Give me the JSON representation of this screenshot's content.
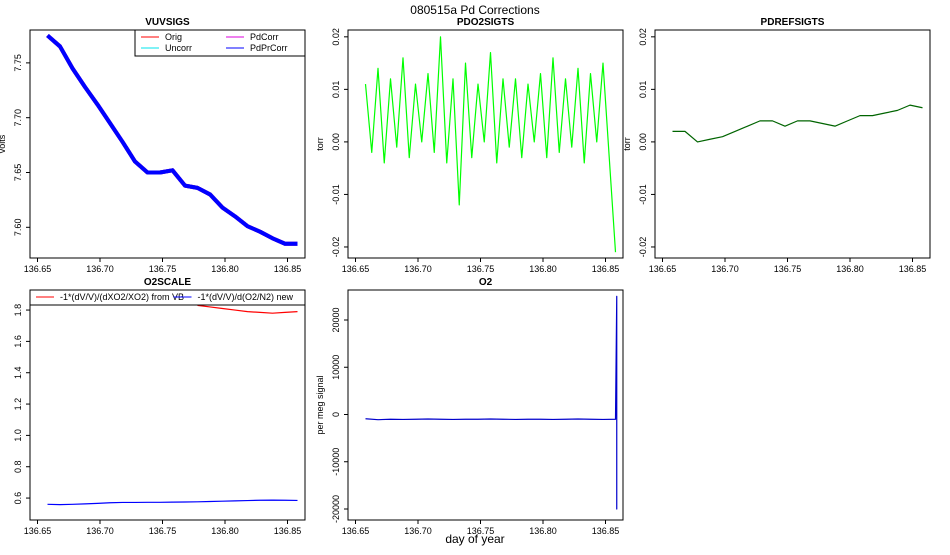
{
  "title": "080515a   Pd Corrections",
  "xlabel": "day of year",
  "chart_data": [
    {
      "type": "line",
      "title": "VUVSIGS",
      "ylabel": "volts",
      "xlim": [
        136.644,
        136.864
      ],
      "xticks": [
        136.65,
        {
          "value": 136.7,
          "label": "136.70"
        },
        136.75,
        {
          "value": 136.8,
          "label": "136.80"
        },
        136.85
      ],
      "ylim": [
        7.572,
        7.78
      ],
      "yticks": [
        {
          "value": 7.6,
          "label": "7.60"
        },
        7.65,
        {
          "value": 7.7,
          "label": "7.70"
        },
        7.75
      ],
      "legend": "upper right",
      "x": [
        136.658,
        136.668,
        136.678,
        136.688,
        136.698,
        136.708,
        136.718,
        136.728,
        136.738,
        136.748,
        136.758,
        136.768,
        136.778,
        136.788,
        136.798,
        136.808,
        136.818,
        136.828,
        136.838,
        136.848,
        136.858
      ],
      "series": [
        {
          "name": "Orig",
          "color": "#ff0000",
          "values": [
            7.775,
            7.765,
            7.745,
            7.728,
            7.712,
            7.695,
            7.678,
            7.66,
            7.65,
            7.65,
            7.652,
            7.638,
            7.636,
            7.63,
            7.618,
            7.61,
            7.601,
            7.596,
            7.59,
            7.585,
            7.585
          ]
        },
        {
          "name": "Uncorr",
          "color": "#00e5ee",
          "values": [
            7.775,
            7.765,
            7.745,
            7.728,
            7.712,
            7.695,
            7.678,
            7.66,
            7.65,
            7.65,
            7.652,
            7.638,
            7.636,
            7.63,
            7.618,
            7.61,
            7.601,
            7.596,
            7.59,
            7.585,
            7.585
          ]
        },
        {
          "name": "PdCorr",
          "color": "#dd00dd",
          "values": [
            7.775,
            7.765,
            7.745,
            7.728,
            7.712,
            7.695,
            7.678,
            7.66,
            7.65,
            7.65,
            7.652,
            7.638,
            7.636,
            7.63,
            7.618,
            7.61,
            7.601,
            7.596,
            7.59,
            7.585,
            7.585
          ]
        },
        {
          "name": "PdPrCorr",
          "color": "#0000ff",
          "values": [
            7.775,
            7.765,
            7.745,
            7.728,
            7.712,
            7.695,
            7.678,
            7.66,
            7.65,
            7.65,
            7.652,
            7.638,
            7.636,
            7.63,
            7.618,
            7.61,
            7.601,
            7.596,
            7.59,
            7.585,
            7.585
          ]
        }
      ]
    },
    {
      "type": "line",
      "title": "PDO2SIGTS",
      "ylabel": "torr",
      "xlim": [
        136.644,
        136.864
      ],
      "xticks": [
        136.65,
        {
          "value": 136.7,
          "label": "136.70"
        },
        136.75,
        {
          "value": 136.8,
          "label": "136.80"
        },
        136.85
      ],
      "ylim": [
        -0.0221,
        0.0213
      ],
      "yticks": [
        0.02,
        0.01,
        {
          "value": 0,
          "label": "0.00"
        },
        -0.01,
        -0.02
      ],
      "x": [
        136.658,
        136.663,
        136.668,
        136.673,
        136.678,
        136.683,
        136.688,
        136.693,
        136.698,
        136.703,
        136.708,
        136.713,
        136.718,
        136.723,
        136.728,
        136.733,
        136.738,
        136.743,
        136.748,
        136.753,
        136.758,
        136.763,
        136.768,
        136.773,
        136.778,
        136.783,
        136.788,
        136.793,
        136.798,
        136.803,
        136.808,
        136.813,
        136.818,
        136.823,
        136.828,
        136.833,
        136.838,
        136.843,
        136.848,
        136.853,
        136.858
      ],
      "series": [
        {
          "color": "#00ff00",
          "values": [
            0.011,
            -0.002,
            0.014,
            -0.004,
            0.012,
            -0.001,
            0.016,
            -0.003,
            0.011,
            0.0,
            0.013,
            -0.002,
            0.02,
            -0.004,
            0.012,
            -0.012,
            0.015,
            -0.003,
            0.011,
            0.0,
            0.017,
            -0.004,
            0.012,
            -0.001,
            0.012,
            -0.003,
            0.011,
            0.0,
            0.013,
            -0.003,
            0.016,
            -0.002,
            0.012,
            -0.001,
            0.014,
            -0.004,
            0.013,
            0.0,
            0.015,
            -0.003,
            -0.021
          ]
        }
      ]
    },
    {
      "type": "line",
      "title": "PDREFSIGTS",
      "ylabel": "torr",
      "xlim": [
        136.644,
        136.864
      ],
      "xticks": [
        136.65,
        {
          "value": 136.7,
          "label": "136.70"
        },
        136.75,
        {
          "value": 136.8,
          "label": "136.80"
        },
        136.85
      ],
      "ylim": [
        -0.0221,
        0.0213
      ],
      "yticks": [
        0.02,
        0.01,
        {
          "value": 0,
          "label": "0.00"
        },
        -0.01,
        -0.02
      ],
      "x": [
        136.658,
        136.668,
        136.678,
        136.688,
        136.698,
        136.708,
        136.718,
        136.728,
        136.738,
        136.748,
        136.758,
        136.768,
        136.778,
        136.788,
        136.798,
        136.808,
        136.818,
        136.828,
        136.838,
        136.848,
        136.858
      ],
      "series": [
        {
          "color": "#006400",
          "values": [
            0.002,
            0.002,
            0.0,
            0.0005,
            0.001,
            0.002,
            0.003,
            0.004,
            0.004,
            0.003,
            0.004,
            0.004,
            0.0035,
            0.003,
            0.004,
            0.005,
            0.005,
            0.0055,
            0.006,
            0.007,
            0.0065
          ]
        }
      ]
    },
    {
      "type": "line",
      "title": "O2SCALE",
      "xlim": [
        136.644,
        136.864
      ],
      "xticks": [
        136.65,
        {
          "value": 136.7,
          "label": "136.70"
        },
        136.75,
        {
          "value": 136.8,
          "label": "136.80"
        },
        136.85
      ],
      "ylim": [
        0.46,
        1.928
      ],
      "yticks": [
        0.6,
        0.8,
        {
          "value": 1,
          "label": "1.0"
        },
        1.2,
        1.4,
        1.6,
        1.8
      ],
      "legend": "top",
      "x": [
        136.658,
        136.668,
        136.678,
        136.688,
        136.698,
        136.708,
        136.718,
        136.728,
        136.738,
        136.748,
        136.758,
        136.768,
        136.778,
        136.788,
        136.798,
        136.808,
        136.818,
        136.828,
        136.838,
        136.848,
        136.858
      ],
      "series": [
        {
          "name": "-1*(dV/V)/(dXO2/XO2) from VB",
          "color": "#ff0000",
          "values": [
            null,
            null,
            null,
            null,
            null,
            null,
            null,
            null,
            null,
            null,
            null,
            null,
            1.83,
            1.82,
            1.81,
            1.8,
            1.79,
            1.785,
            1.78,
            1.785,
            1.79
          ]
        },
        {
          "name": "-1*(dV/V)/d(O2/N2) new",
          "color": "#0000ff",
          "values": [
            0.56,
            0.558,
            0.56,
            0.563,
            0.566,
            0.57,
            0.572,
            0.572,
            0.573,
            0.573,
            0.574,
            0.575,
            0.576,
            0.578,
            0.58,
            0.582,
            0.584,
            0.586,
            0.587,
            0.586,
            0.585
          ]
        }
      ]
    },
    {
      "type": "line",
      "title": "O2",
      "ylabel": "per meg signal",
      "xlim": [
        136.644,
        136.864
      ],
      "xticks": [
        136.65,
        {
          "value": 136.7,
          "label": "136.70"
        },
        136.75,
        {
          "value": 136.8,
          "label": "136.80"
        },
        136.85
      ],
      "ylim": [
        -22330,
        26350
      ],
      "yticks": [
        -20000,
        -10000,
        0,
        10000,
        20000
      ],
      "x": [
        136.658,
        136.668,
        136.678,
        136.688,
        136.698,
        136.708,
        136.718,
        136.728,
        136.738,
        136.748,
        136.758,
        136.768,
        136.778,
        136.788,
        136.798,
        136.808,
        136.818,
        136.828,
        136.838,
        136.848,
        136.858,
        136.859,
        136.859,
        136.859
      ],
      "series": [
        {
          "color": "#0000cc",
          "values": [
            -900,
            -1100,
            -1000,
            -1050,
            -1000,
            -950,
            -1000,
            -1050,
            -1000,
            -1000,
            -950,
            -1000,
            -1050,
            -1000,
            -1000,
            -1050,
            -1000,
            -950,
            -1000,
            -1050,
            -1000,
            25000,
            -20000,
            -1000
          ]
        }
      ]
    }
  ]
}
